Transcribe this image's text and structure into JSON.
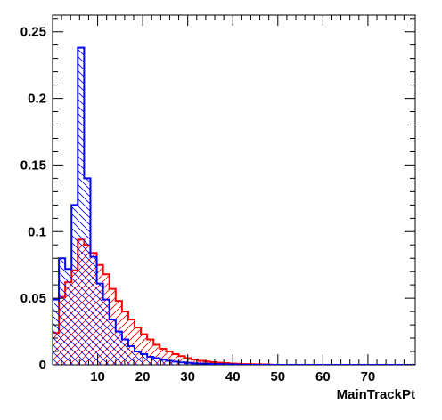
{
  "chart_data": {
    "type": "histogram",
    "xlabel": "MainTrackPt",
    "ylabel": "",
    "xlim": [
      0,
      80.5
    ],
    "ylim": [
      0,
      0.2625
    ],
    "bin_width": 1.4,
    "x_ticks": [
      10,
      20,
      30,
      40,
      50,
      60,
      70
    ],
    "y_ticks": [
      0,
      0.05,
      0.1,
      0.15,
      0.2,
      0.25
    ],
    "x_tick_labels": [
      "10",
      "20",
      "30",
      "40",
      "50",
      "60",
      "70"
    ],
    "y_tick_labels": [
      "0",
      "0.05",
      "0.1",
      "0.15",
      "0.2",
      "0.25"
    ],
    "series": [
      {
        "color": "#ff0000",
        "hatch": "diagonal-down",
        "values": [
          0.024,
          0.051,
          0.062,
          0.071,
          0.094,
          0.09,
          0.084,
          0.075,
          0.068,
          0.057,
          0.048,
          0.04,
          0.034,
          0.028,
          0.023,
          0.019,
          0.015,
          0.012,
          0.01,
          0.008,
          0.0065,
          0.005,
          0.004,
          0.003,
          0.0025,
          0.002,
          0.0016,
          0.0013,
          0.001,
          0.0008,
          0.0006,
          0.0005,
          0.0004,
          0.0003,
          0.0002
        ]
      },
      {
        "color": "#0000ff",
        "hatch": "diagonal-up",
        "values": [
          0.049,
          0.08,
          0.072,
          0.12,
          0.238,
          0.14,
          0.081,
          0.061,
          0.049,
          0.034,
          0.025,
          0.019,
          0.014,
          0.01,
          0.008,
          0.006,
          0.005,
          0.0038,
          0.003,
          0.0024,
          0.0018,
          0.0015,
          0.0012,
          0.001,
          0.0008,
          0.0006,
          0.0005,
          0.0004,
          0.0003,
          0.0002,
          0.0001
        ]
      }
    ]
  }
}
